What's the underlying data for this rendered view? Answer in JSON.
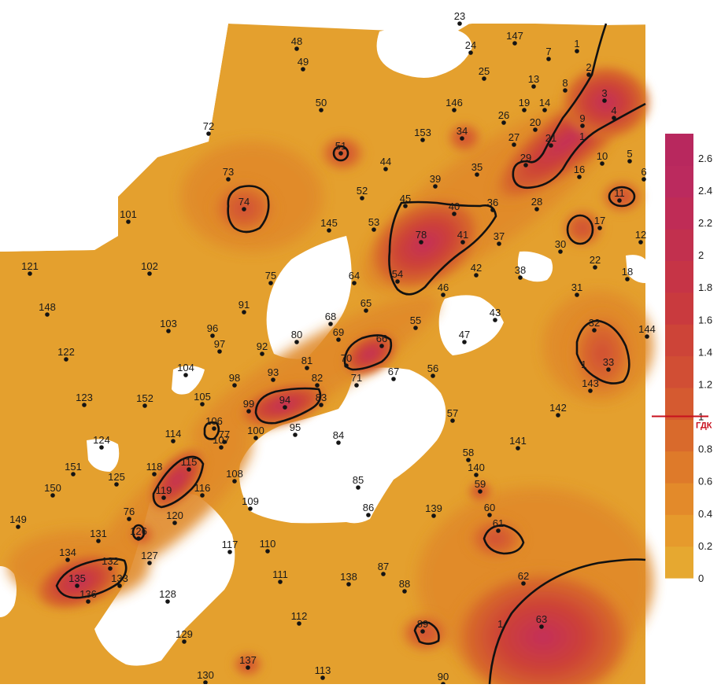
{
  "map": {
    "colors": {
      "base": "#e4a02e",
      "zone_low": "#e08a2a",
      "zone_mid": "#d76a2a",
      "zone_high": "#cd4236",
      "zone_peak": "#c42e5a",
      "isoline": "#111111",
      "marker": "#c8101e",
      "gap": "#ffffff"
    },
    "wells": [
      {
        "id": "1",
        "v": 0.9
      },
      {
        "id": "2",
        "v": 1.1
      },
      {
        "id": "3",
        "v": 2.4
      },
      {
        "id": "4",
        "v": 2.2
      },
      {
        "id": "5",
        "v": 0.3
      },
      {
        "id": "6",
        "v": 0.3
      },
      {
        "id": "7",
        "v": 0.3
      },
      {
        "id": "8",
        "v": 0.8
      },
      {
        "id": "9",
        "v": 1.4
      },
      {
        "id": "10",
        "v": 0.4
      },
      {
        "id": "11",
        "v": 1.4
      },
      {
        "id": "12",
        "v": 0.4
      },
      {
        "id": "13",
        "v": 0.4
      },
      {
        "id": "14",
        "v": 0.6
      },
      {
        "id": "16",
        "v": 0.4
      },
      {
        "id": "17",
        "v": 0.6
      },
      {
        "id": "18",
        "v": 0.2
      },
      {
        "id": "19",
        "v": 0.5
      },
      {
        "id": "20",
        "v": 0.8
      },
      {
        "id": "21",
        "v": 1.2
      },
      {
        "id": "22",
        "v": 0.4
      },
      {
        "id": "23",
        "v": 0.1
      },
      {
        "id": "24",
        "v": 0.2
      },
      {
        "id": "25",
        "v": 0.2
      },
      {
        "id": "26",
        "v": 0.5
      },
      {
        "id": "27",
        "v": 0.6
      },
      {
        "id": "28",
        "v": 0.6
      },
      {
        "id": "29",
        "v": 1.4
      },
      {
        "id": "30",
        "v": 0.5
      },
      {
        "id": "31",
        "v": 0.3
      },
      {
        "id": "32",
        "v": 1.3
      },
      {
        "id": "33",
        "v": 1.3
      },
      {
        "id": "34",
        "v": 0.9
      },
      {
        "id": "35",
        "v": 0.3
      },
      {
        "id": "36",
        "v": 1.2
      },
      {
        "id": "37",
        "v": 0.5
      },
      {
        "id": "38",
        "v": 0.2
      },
      {
        "id": "39",
        "v": 0.3
      },
      {
        "id": "40",
        "v": 1.3
      },
      {
        "id": "41",
        "v": 1.6
      },
      {
        "id": "42",
        "v": 0.4
      },
      {
        "id": "43",
        "v": 0.3
      },
      {
        "id": "44",
        "v": 0.3
      },
      {
        "id": "45",
        "v": 1.2
      },
      {
        "id": "46",
        "v": 0.6
      },
      {
        "id": "47",
        "v": 0.2
      },
      {
        "id": "48",
        "v": 0.1
      },
      {
        "id": "49",
        "v": 0.2
      },
      {
        "id": "50",
        "v": 0.3
      },
      {
        "id": "51",
        "v": 1.1
      },
      {
        "id": "52",
        "v": 0.3
      },
      {
        "id": "53",
        "v": 0.6
      },
      {
        "id": "54",
        "v": 1.4
      },
      {
        "id": "55",
        "v": 0.4
      },
      {
        "id": "56",
        "v": 0.3
      },
      {
        "id": "57",
        "v": 0.2
      },
      {
        "id": "58",
        "v": 0.4
      },
      {
        "id": "59",
        "v": 0.8
      },
      {
        "id": "60",
        "v": 0.7
      },
      {
        "id": "61",
        "v": 1.2
      },
      {
        "id": "62",
        "v": 0.5
      },
      {
        "id": "63",
        "v": 2.2
      },
      {
        "id": "64",
        "v": 0.4
      },
      {
        "id": "65",
        "v": 0.7
      },
      {
        "id": "66",
        "v": 1.3
      },
      {
        "id": "67",
        "v": 0.7
      },
      {
        "id": "68",
        "v": 0.5
      },
      {
        "id": "69",
        "v": 0.6
      },
      {
        "id": "70",
        "v": 1.3
      },
      {
        "id": "71",
        "v": 0.6
      },
      {
        "id": "72",
        "v": 0.2
      },
      {
        "id": "73",
        "v": 0.3
      },
      {
        "id": "74",
        "v": 1.2
      },
      {
        "id": "75",
        "v": 0.3
      },
      {
        "id": "76",
        "v": 0.7
      },
      {
        "id": "77",
        "v": 1.3
      },
      {
        "id": "78",
        "v": 1.7
      },
      {
        "id": "80",
        "v": 0.3
      },
      {
        "id": "81",
        "v": 0.5
      },
      {
        "id": "82",
        "v": 1.2
      },
      {
        "id": "83",
        "v": 0.8
      },
      {
        "id": "84",
        "v": 0.3
      },
      {
        "id": "85",
        "v": 0.3
      },
      {
        "id": "86",
        "v": 0.3
      },
      {
        "id": "87",
        "v": 0.3
      },
      {
        "id": "88",
        "v": 0.4
      },
      {
        "id": "89",
        "v": 1.3
      },
      {
        "id": "90",
        "v": 0.6
      },
      {
        "id": "91",
        "v": 0.2
      },
      {
        "id": "92",
        "v": 0.3
      },
      {
        "id": "93",
        "v": 0.9
      },
      {
        "id": "94",
        "v": 1.6
      },
      {
        "id": "95",
        "v": 0.7
      },
      {
        "id": "96",
        "v": 0.2
      },
      {
        "id": "97",
        "v": 0.3
      },
      {
        "id": "98",
        "v": 0.6
      },
      {
        "id": "99",
        "v": 1.3
      },
      {
        "id": "100",
        "v": 0.7
      },
      {
        "id": "101",
        "v": 0.2
      },
      {
        "id": "102",
        "v": 0.2
      },
      {
        "id": "103",
        "v": 0.2
      },
      {
        "id": "104",
        "v": 0.3
      },
      {
        "id": "105",
        "v": 0.3
      },
      {
        "id": "106",
        "v": 1.2
      },
      {
        "id": "107",
        "v": 0.9
      },
      {
        "id": "108",
        "v": 0.3
      },
      {
        "id": "109",
        "v": 0.2
      },
      {
        "id": "110",
        "v": 0.2
      },
      {
        "id": "111",
        "v": 0.2
      },
      {
        "id": "112",
        "v": 0.2
      },
      {
        "id": "113",
        "v": 0.3
      },
      {
        "id": "114",
        "v": 0.4
      },
      {
        "id": "115",
        "v": 1.6
      },
      {
        "id": "116",
        "v": 0.7
      },
      {
        "id": "117",
        "v": 0.2
      },
      {
        "id": "118",
        "v": 0.5
      },
      {
        "id": "119",
        "v": 1.4
      },
      {
        "id": "120",
        "v": 0.6
      },
      {
        "id": "121",
        "v": 0.2
      },
      {
        "id": "122",
        "v": 0.2
      },
      {
        "id": "123",
        "v": 0.2
      },
      {
        "id": "124",
        "v": 0.3
      },
      {
        "id": "125",
        "v": 0.3
      },
      {
        "id": "126",
        "v": 1.2
      },
      {
        "id": "127",
        "v": 0.6
      },
      {
        "id": "128",
        "v": 0.3
      },
      {
        "id": "129",
        "v": 0.2
      },
      {
        "id": "130",
        "v": 0.2
      },
      {
        "id": "131",
        "v": 0.5
      },
      {
        "id": "132",
        "v": 1.4
      },
      {
        "id": "133",
        "v": 1.0
      },
      {
        "id": "134",
        "v": 0.6
      },
      {
        "id": "135",
        "v": 1.6
      },
      {
        "id": "136",
        "v": 1.1
      },
      {
        "id": "137",
        "v": 0.8
      },
      {
        "id": "138",
        "v": 0.4
      },
      {
        "id": "139",
        "v": 0.4
      },
      {
        "id": "140",
        "v": 0.5
      },
      {
        "id": "141",
        "v": 0.4
      },
      {
        "id": "142",
        "v": 0.3
      },
      {
        "id": "143",
        "v": 0.6
      },
      {
        "id": "144",
        "v": 0.3
      },
      {
        "id": "145",
        "v": 0.3
      },
      {
        "id": "146",
        "v": 0.3
      },
      {
        "id": "147",
        "v": 0.3
      },
      {
        "id": "148",
        "v": 0.2
      },
      {
        "id": "149",
        "v": 0.3
      },
      {
        "id": "150",
        "v": 0.4
      },
      {
        "id": "151",
        "v": 0.4
      },
      {
        "id": "152",
        "v": 0.3
      },
      {
        "id": "153",
        "v": 0.3
      }
    ],
    "isoline_labels": [
      "1",
      "1",
      "1"
    ]
  },
  "legend": {
    "ticks": [
      "2.6",
      "2.4",
      "2.2",
      "2",
      "1.8",
      "1.6",
      "1.4",
      "1.2",
      "1",
      "0.8",
      "0.6",
      "0.4",
      "0.2",
      "0"
    ],
    "range": [
      0,
      2.75
    ],
    "marker_label": "ГДК",
    "marker_value": 1,
    "colors": [
      "#e6a830",
      "#e69a2c",
      "#e38a2a",
      "#de7a2a",
      "#d96a2c",
      "#d55a30",
      "#d14e34",
      "#cd4438",
      "#c93a3e",
      "#c63446",
      "#c2304e",
      "#bf2c56",
      "#bb2a5e",
      "#b8285e"
    ]
  }
}
